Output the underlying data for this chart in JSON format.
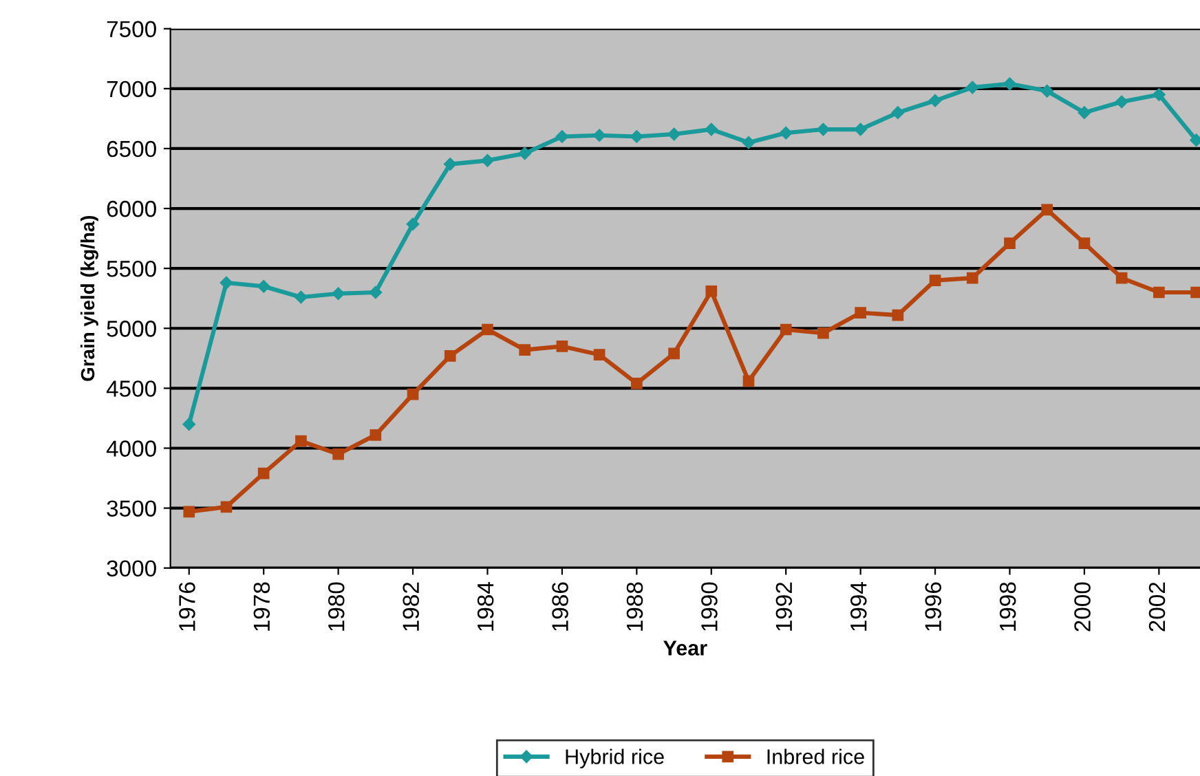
{
  "chart_data": {
    "type": "line",
    "xlabel": "Year",
    "ylabel": "Grain yield (kg/ha)",
    "x": [
      1976,
      1977,
      1978,
      1979,
      1980,
      1981,
      1982,
      1983,
      1984,
      1985,
      1986,
      1987,
      1988,
      1989,
      1990,
      1991,
      1992,
      1993,
      1994,
      1995,
      1996,
      1997,
      1998,
      1999,
      2000,
      2001,
      2002,
      2003
    ],
    "series": [
      {
        "name": "Hybrid rice",
        "color": "#1a9a9a",
        "marker": "diamond",
        "values": [
          4200,
          5380,
          5350,
          5260,
          5290,
          5300,
          5870,
          6370,
          6400,
          6460,
          6600,
          6610,
          6600,
          6620,
          6660,
          6550,
          6630,
          6660,
          6660,
          6800,
          6900,
          7010,
          7040,
          6980,
          6800,
          6890,
          6950,
          6570
        ]
      },
      {
        "name": "Inbred rice",
        "color": "#b5440f",
        "marker": "square",
        "values": [
          3470,
          3510,
          3790,
          4060,
          3950,
          4110,
          4450,
          4770,
          4990,
          4820,
          4850,
          4780,
          4540,
          4790,
          5310,
          4560,
          4990,
          4960,
          5130,
          5110,
          5400,
          5420,
          5710,
          5990,
          5710,
          5420,
          5300,
          5300
        ]
      }
    ],
    "xlim": [
      1975.5,
      2003.1
    ],
    "xticks": [
      1976,
      1978,
      1980,
      1982,
      1984,
      1986,
      1988,
      1990,
      1992,
      1994,
      1996,
      1998,
      2000,
      2002
    ],
    "ylim": [
      3000,
      7500
    ],
    "yticks": [
      3000,
      3500,
      4000,
      4500,
      5000,
      5500,
      6000,
      6500,
      7000,
      7500
    ],
    "grid": "y",
    "legend": "bottom",
    "line_style": "solid"
  }
}
